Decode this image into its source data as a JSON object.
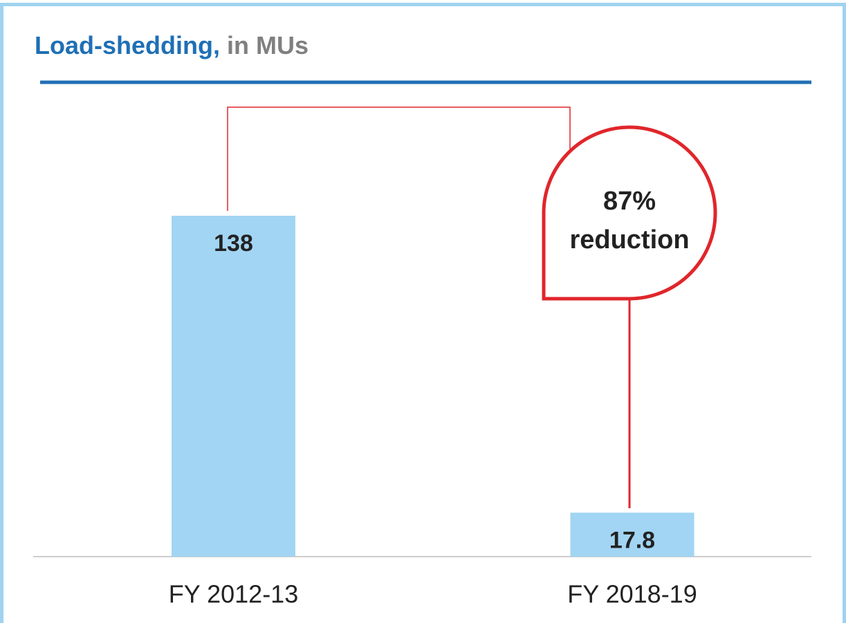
{
  "chart_data": {
    "type": "bar",
    "title": "Load-shedding,",
    "title_unit": "in MUs",
    "categories": [
      "FY 2012-13",
      "FY 2018-19"
    ],
    "values": [
      138,
      17.8
    ],
    "color": "#a1d5f3",
    "ylim": [
      0,
      180
    ],
    "annotation": [
      "87%",
      "reduction"
    ]
  }
}
